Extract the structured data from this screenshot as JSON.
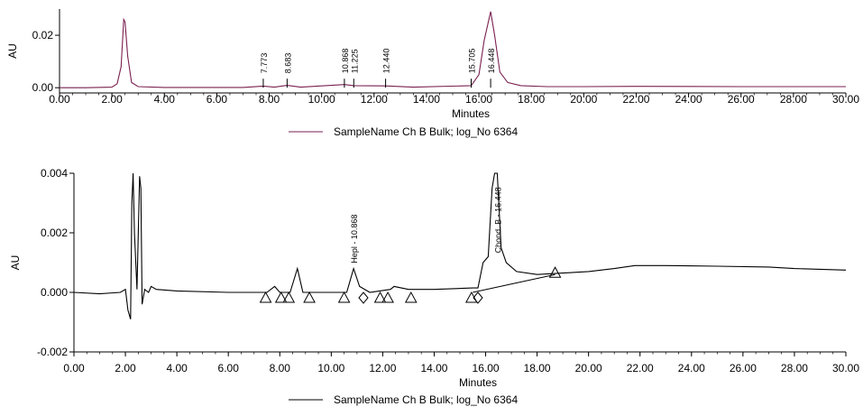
{
  "chart_data": [
    {
      "type": "line",
      "title": "",
      "xlabel": "Minutes",
      "ylabel": "AU",
      "xlim": [
        0,
        30
      ],
      "ylim": [
        -0.002,
        0.03
      ],
      "x_ticks": [
        "0.00",
        "2.00",
        "4.00",
        "6.00",
        "8.00",
        "10.00",
        "12.00",
        "14.00",
        "16.00",
        "18.00",
        "20.00",
        "22.00",
        "24.00",
        "26.00",
        "28.00",
        "30.00"
      ],
      "y_ticks": [
        {
          "value": 0.0,
          "label": "0.00"
        },
        {
          "value": 0.02,
          "label": "0.02"
        }
      ],
      "legend": "SampleName Ch B Bulk; log_No 6364",
      "legend_color": "#7a2050",
      "line_color": "#7a2050",
      "peak_labels": [
        {
          "x": 7.773,
          "label": "7.773"
        },
        {
          "x": 8.683,
          "label": "8.683"
        },
        {
          "x": 10.868,
          "label": "10.868"
        },
        {
          "x": 11.225,
          "label": "11.225"
        },
        {
          "x": 12.44,
          "label": "12.440"
        },
        {
          "x": 15.705,
          "label": "15.705"
        },
        {
          "x": 16.448,
          "label": "16.448"
        }
      ],
      "series": [
        {
          "points": [
            [
              0.0,
              0.0
            ],
            [
              1.0,
              0.0
            ],
            [
              2.0,
              0.0002
            ],
            [
              2.2,
              0.0015
            ],
            [
              2.35,
              0.008
            ],
            [
              2.45,
              0.026
            ],
            [
              2.5,
              0.025
            ],
            [
              2.6,
              0.012
            ],
            [
              2.75,
              0.002
            ],
            [
              3.0,
              0.0004
            ],
            [
              4.0,
              0.0001
            ],
            [
              7.0,
              0.0001
            ],
            [
              7.773,
              0.0006
            ],
            [
              8.2,
              0.0002
            ],
            [
              8.683,
              0.0009
            ],
            [
              9.2,
              0.0002
            ],
            [
              10.868,
              0.0012
            ],
            [
              11.225,
              0.0008
            ],
            [
              12.44,
              0.0007
            ],
            [
              13.5,
              0.0002
            ],
            [
              15.705,
              0.0008
            ],
            [
              16.0,
              0.005
            ],
            [
              16.2,
              0.018
            ],
            [
              16.448,
              0.029
            ],
            [
              16.6,
              0.02
            ],
            [
              16.8,
              0.006
            ],
            [
              17.1,
              0.002
            ],
            [
              17.6,
              0.0008
            ],
            [
              18.6,
              0.0004
            ],
            [
              20.0,
              0.0004
            ],
            [
              22.0,
              0.0005
            ],
            [
              26.0,
              0.0004
            ],
            [
              30.0,
              0.0004
            ]
          ]
        }
      ]
    },
    {
      "type": "line",
      "title": "",
      "xlabel": "Minutes",
      "ylabel": "AU",
      "xlim": [
        0,
        30
      ],
      "ylim": [
        -0.002,
        0.004
      ],
      "x_ticks": [
        "0.00",
        "2.00",
        "4.00",
        "6.00",
        "8.00",
        "10.00",
        "12.00",
        "14.00",
        "16.00",
        "18.00",
        "20.00",
        "22.00",
        "24.00",
        "26.00",
        "28.00",
        "30.00"
      ],
      "y_ticks": [
        {
          "value": -0.002,
          "label": "-0.002"
        },
        {
          "value": 0.0,
          "label": "0.000"
        },
        {
          "value": 0.002,
          "label": "0.002"
        },
        {
          "value": 0.004,
          "label": "0.004"
        }
      ],
      "legend": "SampleName Ch B Bulk; log_No 6364",
      "legend_color": "#000000",
      "line_color": "#000000",
      "peak_labels": [
        {
          "x": 10.868,
          "label": "Hepl - 10.868"
        },
        {
          "x": 16.448,
          "label": "Chond. B - 16.448"
        }
      ],
      "markers": [
        {
          "x": 7.45,
          "shape": "triangle"
        },
        {
          "x": 8.05,
          "shape": "triangle"
        },
        {
          "x": 8.35,
          "shape": "triangle"
        },
        {
          "x": 9.15,
          "shape": "triangle"
        },
        {
          "x": 10.5,
          "shape": "triangle"
        },
        {
          "x": 11.25,
          "shape": "diamond"
        },
        {
          "x": 11.9,
          "shape": "triangle"
        },
        {
          "x": 12.2,
          "shape": "triangle"
        },
        {
          "x": 13.1,
          "shape": "triangle"
        },
        {
          "x": 15.45,
          "shape": "triangle"
        },
        {
          "x": 15.7,
          "shape": "diamond"
        },
        {
          "x": 18.7,
          "shape": "triangle"
        }
      ],
      "baseline_segments": [
        [
          [
            15.5,
            0.0
          ],
          [
            18.7,
            0.0006
          ]
        ]
      ],
      "series": [
        {
          "points": [
            [
              0.0,
              0.0
            ],
            [
              1.0,
              -5e-05
            ],
            [
              1.8,
              0.0
            ],
            [
              2.0,
              0.0001
            ],
            [
              2.1,
              -0.0006
            ],
            [
              2.2,
              -0.0009
            ],
            [
              2.25,
              0.003
            ],
            [
              2.3,
              0.004
            ],
            [
              2.35,
              0.002
            ],
            [
              2.45,
              0.0001
            ],
            [
              2.55,
              0.0039
            ],
            [
              2.6,
              0.0035
            ],
            [
              2.65,
              -0.0004
            ],
            [
              2.75,
              0.0001
            ],
            [
              2.9,
              0.0
            ],
            [
              3.0,
              0.0002
            ],
            [
              3.2,
              0.0001
            ],
            [
              4.0,
              5e-05
            ],
            [
              6.0,
              0.0
            ],
            [
              7.5,
              0.0
            ],
            [
              7.8,
              0.0002
            ],
            [
              8.0,
              0.0
            ],
            [
              8.4,
              0.0
            ],
            [
              8.683,
              0.0008
            ],
            [
              8.9,
              0.0
            ],
            [
              10.0,
              0.0
            ],
            [
              10.6,
              0.0
            ],
            [
              10.868,
              0.0008
            ],
            [
              11.1,
              0.0002
            ],
            [
              11.5,
              0.0
            ],
            [
              12.3,
              0.0001
            ],
            [
              12.44,
              0.0002
            ],
            [
              13.0,
              0.0001
            ],
            [
              14.0,
              0.0001
            ],
            [
              15.5,
              0.00015
            ],
            [
              15.7,
              0.00015
            ],
            [
              15.9,
              0.001
            ],
            [
              16.1,
              0.0012
            ],
            [
              16.25,
              0.0035
            ],
            [
              16.35,
              0.006
            ],
            [
              16.45,
              0.0045
            ],
            [
              16.6,
              0.0015
            ],
            [
              16.8,
              0.001
            ],
            [
              17.2,
              0.0007
            ],
            [
              18.0,
              0.0006
            ],
            [
              19.0,
              0.00065
            ],
            [
              20.0,
              0.0007
            ],
            [
              21.0,
              0.0008
            ],
            [
              21.8,
              0.0009
            ],
            [
              23.0,
              0.0009
            ],
            [
              25.0,
              0.00088
            ],
            [
              27.0,
              0.00085
            ],
            [
              28.0,
              0.0008
            ],
            [
              30.0,
              0.00075
            ]
          ]
        }
      ]
    }
  ]
}
